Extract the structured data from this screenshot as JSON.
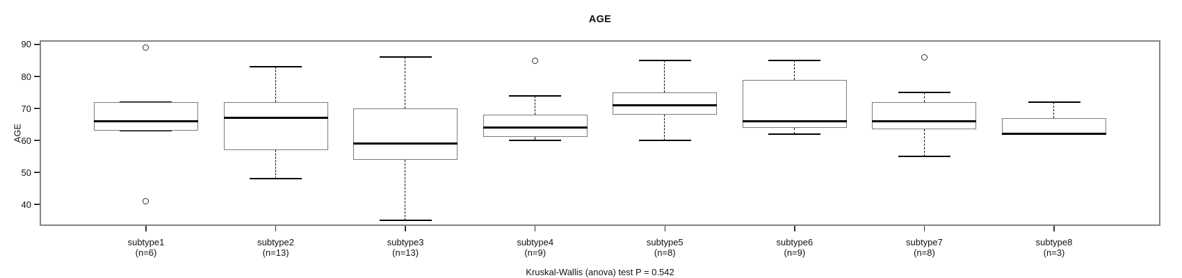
{
  "chart_data": {
    "type": "boxplot",
    "title": "AGE",
    "ylabel": "AGE",
    "xlabel": "",
    "caption": "Kruskal-Wallis (anova) test P = 0.542",
    "ylim": [
      33.3,
      91.3
    ],
    "yticks": [
      40,
      50,
      60,
      70,
      80,
      90
    ],
    "grid": false,
    "legend": null,
    "categories": [
      "subtype1",
      "subtype2",
      "subtype3",
      "subtype4",
      "subtype5",
      "subtype6",
      "subtype7",
      "subtype8"
    ],
    "groups": [
      {
        "label": "subtype1",
        "n_label": "(n=6)",
        "n": 6,
        "whisker_low": 63,
        "q1": 63,
        "median": 66,
        "q3": 72,
        "whisker_high": 72,
        "outliers": [
          89,
          41
        ]
      },
      {
        "label": "subtype2",
        "n_label": "(n=13)",
        "n": 13,
        "whisker_low": 48,
        "q1": 57,
        "median": 67,
        "q3": 72,
        "whisker_high": 83,
        "outliers": []
      },
      {
        "label": "subtype3",
        "n_label": "(n=13)",
        "n": 13,
        "whisker_low": 35,
        "q1": 54,
        "median": 59,
        "q3": 70,
        "whisker_high": 86,
        "outliers": []
      },
      {
        "label": "subtype4",
        "n_label": "(n=9)",
        "n": 9,
        "whisker_low": 60,
        "q1": 61,
        "median": 64,
        "q3": 68,
        "whisker_high": 74,
        "outliers": [
          85
        ]
      },
      {
        "label": "subtype5",
        "n_label": "(n=8)",
        "n": 8,
        "whisker_low": 60,
        "q1": 68,
        "median": 71,
        "q3": 75,
        "whisker_high": 85,
        "outliers": []
      },
      {
        "label": "subtype6",
        "n_label": "(n=9)",
        "n": 9,
        "whisker_low": 62,
        "q1": 64,
        "median": 66,
        "q3": 79,
        "whisker_high": 85,
        "outliers": []
      },
      {
        "label": "subtype7",
        "n_label": "(n=8)",
        "n": 8,
        "whisker_low": 55,
        "q1": 63.5,
        "median": 66,
        "q3": 72,
        "whisker_high": 75,
        "outliers": [
          86
        ]
      },
      {
        "label": "subtype8",
        "n_label": "(n=3)",
        "n": 3,
        "whisker_low": 62,
        "q1": 62,
        "median": 62,
        "q3": 67,
        "whisker_high": 72,
        "outliers": []
      }
    ],
    "colors": {
      "background": "#ffffff",
      "frame": "#828282",
      "box_border": "#787878",
      "median": "#000000",
      "whisker": "#000000",
      "text": "#111111"
    }
  }
}
